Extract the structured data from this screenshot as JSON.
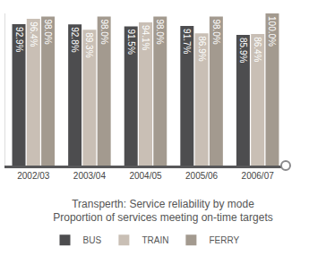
{
  "chart_data": {
    "type": "bar",
    "title": "Transperth: Service reliability by mode",
    "subtitle": "Proportion of services meeting on-time targets",
    "categories": [
      "2002/03",
      "2003/04",
      "2004/05",
      "2005/06",
      "2006/07"
    ],
    "series": [
      {
        "name": "BUS",
        "color": "#4d4d4f",
        "values": [
          92.9,
          92.8,
          91.5,
          91.7,
          85.9
        ],
        "value_labels": [
          "92.9%",
          "92.8%",
          "91.5%",
          "91.7%",
          "85.9%"
        ]
      },
      {
        "name": "TRAIN",
        "color": "#c9bfb5",
        "values": [
          96.4,
          89.3,
          94.1,
          86.9,
          86.4
        ],
        "value_labels": [
          "96.4%",
          "89.3%",
          "94.1%",
          "86.9%",
          "86.4%"
        ]
      },
      {
        "name": "FERRY",
        "color": "#a39a8f",
        "values": [
          98.0,
          98.0,
          98.0,
          98.0,
          100.0
        ],
        "value_labels": [
          "98.0%",
          "98.0%",
          "98.0%",
          "98.0%",
          "100.0%"
        ]
      }
    ],
    "ylim": [
      0,
      100
    ],
    "data_labels": true,
    "tick_labels": "x",
    "grid": false,
    "legend": "bottom"
  }
}
